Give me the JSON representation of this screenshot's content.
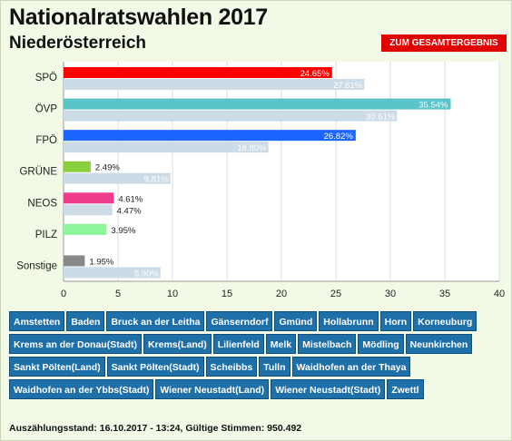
{
  "title": "Nationalratswahlen 2017",
  "subtitle": "Niederösterreich",
  "gesamt_button": "ZUM GESAMTERGEBNIS",
  "chart_data": {
    "type": "bar",
    "orientation": "horizontal",
    "categories": [
      "SPÖ",
      "ÖVP",
      "FPÖ",
      "GRÜNE",
      "NEOS",
      "PILZ",
      "Sonstige"
    ],
    "series": [
      {
        "values": [
          24.65,
          35.54,
          26.82,
          2.49,
          4.61,
          3.95,
          1.95
        ],
        "labels": [
          "24.65%",
          "35.54%",
          "26.82%",
          "2.49%",
          "4.61%",
          "3.95%",
          "1.95%"
        ],
        "colors": [
          "#ff0000",
          "#5bc4c8",
          "#1a66ff",
          "#8ccf3e",
          "#ee3b8b",
          "#8ef59c",
          "#888888"
        ]
      },
      {
        "values": [
          27.61,
          30.61,
          18.8,
          9.81,
          4.47,
          null,
          8.9
        ],
        "labels": [
          "27.61%",
          "30.61%",
          "18.80%",
          "9.81%",
          "4.47%",
          "",
          "8.90%"
        ],
        "color": "#cddbe6"
      }
    ],
    "xticks": [
      "0",
      "5",
      "10",
      "15",
      "20",
      "25",
      "30",
      "35",
      "40"
    ],
    "xlim": [
      0,
      40
    ],
    "grid": true
  },
  "districts": [
    [
      "Amstetten",
      "Baden",
      "Bruck an der Leitha",
      "Gänserndorf",
      "Gmünd",
      "Hollabrunn",
      "Horn",
      "Korneuburg"
    ],
    [
      "Krems an der Donau(Stadt)",
      "Krems(Land)",
      "Lilienfeld",
      "Melk",
      "Mistelbach",
      "Mödling",
      "Neunkirchen"
    ],
    [
      "Sankt Pölten(Land)",
      "Sankt Pölten(Stadt)",
      "Scheibbs",
      "Tulln",
      "Waidhofen an der Thaya"
    ],
    [
      "Waidhofen an der Ybbs(Stadt)",
      "Wiener Neustadt(Land)",
      "Wiener Neustadt(Stadt)",
      "Zwettl"
    ]
  ],
  "footer": "Auszählungsstand: 16.10.2017 - 13:24, Gültige Stimmen: 950.492"
}
